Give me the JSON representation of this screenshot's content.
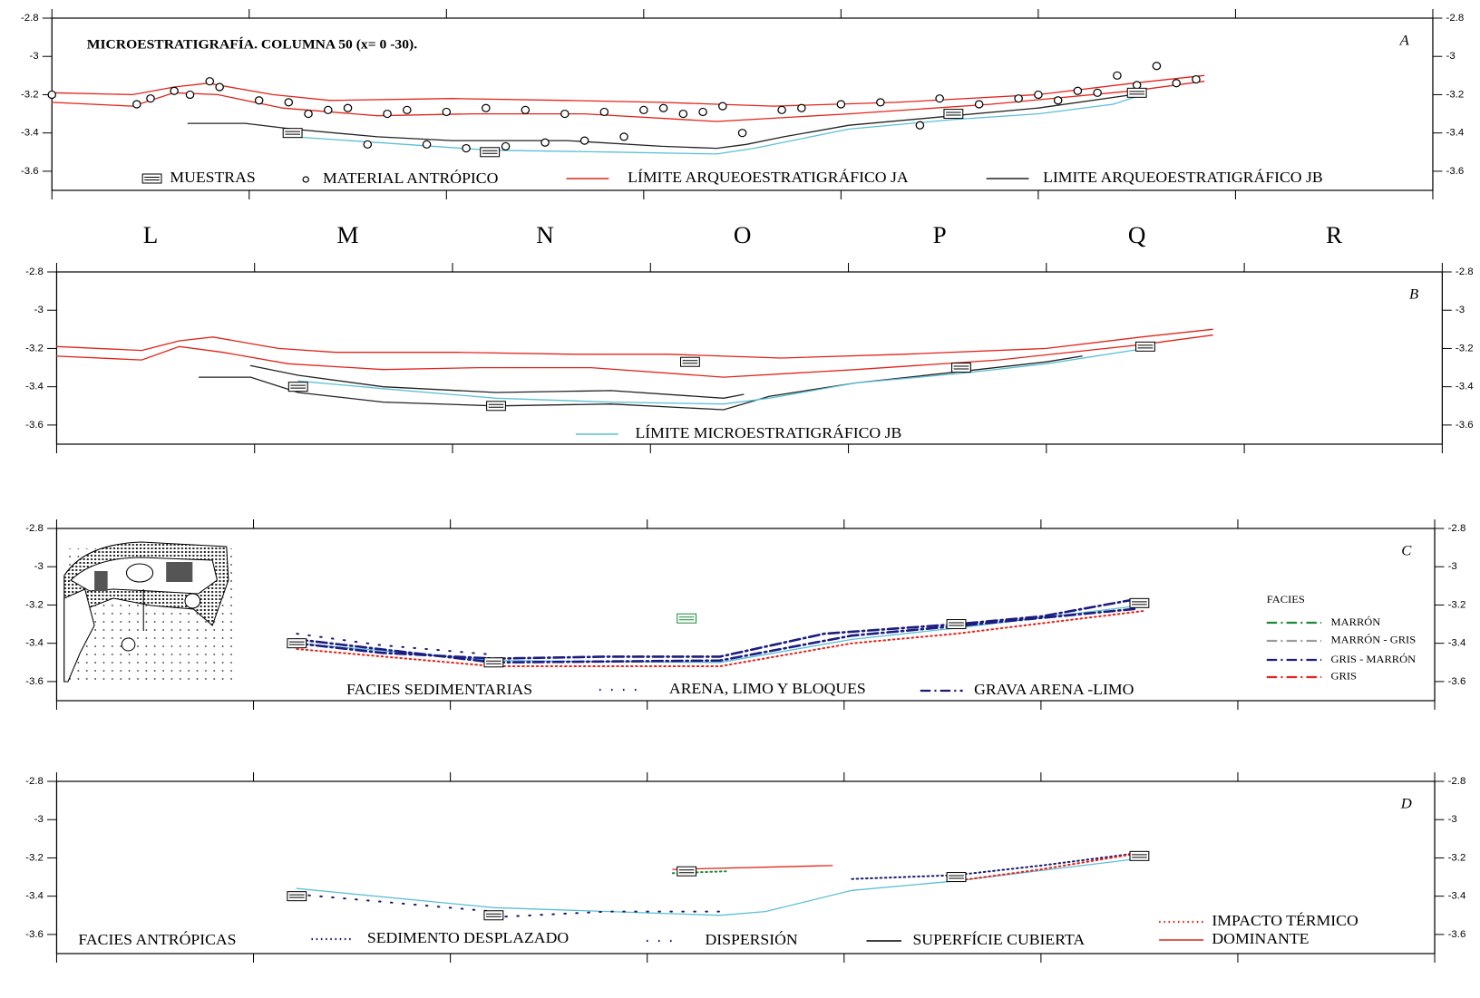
{
  "columns": [
    "L",
    "M",
    "N",
    "O",
    "P",
    "Q",
    "R"
  ],
  "chart_data": [
    {
      "type": "line",
      "title": "MICROESTRATIGRAFÍA.  COLUMNA 50 (x= 0 -30).",
      "panel_label": "A",
      "xlim": [
        0,
        7
      ],
      "xticks": [
        0,
        1,
        2,
        3,
        4,
        5,
        6,
        7
      ],
      "ylim": [
        -3.7,
        -2.8
      ],
      "yticks": [
        -2.8,
        -3,
        -3.2,
        -3.4,
        -3.6
      ],
      "series": [
        {
          "color": "#e2231a",
          "style": "solid",
          "x": [
            0,
            0.41,
            0.62,
            0.79,
            1.12,
            1.41,
            2.03,
            2.61,
            3.09,
            3.66,
            4.28,
            5.0,
            5.48,
            5.84
          ],
          "values": [
            -3.19,
            -3.2,
            -3.16,
            -3.14,
            -3.2,
            -3.23,
            -3.22,
            -3.23,
            -3.24,
            -3.26,
            -3.24,
            -3.2,
            -3.14,
            -3.1
          ]
        },
        {
          "color": "#e2231a",
          "style": "solid",
          "x": [
            0,
            0.41,
            0.62,
            0.84,
            1.17,
            1.65,
            2.13,
            2.7,
            3.37,
            4.04,
            4.76,
            5.48,
            5.84
          ],
          "values": [
            -3.24,
            -3.26,
            -3.19,
            -3.2,
            -3.27,
            -3.31,
            -3.3,
            -3.3,
            -3.34,
            -3.3,
            -3.25,
            -3.18,
            -3.13
          ]
        },
        {
          "color": "#222222",
          "style": "solid",
          "x": [
            0.69,
            0.98,
            1.22,
            1.65,
            2.03,
            2.61,
            3.09,
            3.37,
            3.52,
            3.71,
            4.04,
            4.57,
            5.0,
            5.48
          ],
          "values": [
            -3.35,
            -3.35,
            -3.38,
            -3.42,
            -3.44,
            -3.44,
            -3.47,
            -3.48,
            -3.46,
            -3.42,
            -3.36,
            -3.31,
            -3.27,
            -3.2
          ]
        },
        {
          "color": "#5bbfd6",
          "style": "solid",
          "x": [
            1.22,
            1.65,
            2.22,
            2.85,
            3.37,
            3.56,
            4.04,
            4.57,
            5.0,
            5.38,
            5.53
          ],
          "values": [
            -3.42,
            -3.45,
            -3.49,
            -3.5,
            -3.51,
            -3.48,
            -3.38,
            -3.33,
            -3.3,
            -3.25,
            -3.2
          ]
        },
        {
          "color": "#000000",
          "marker": "circle",
          "x": [
            0.0,
            0.43,
            0.5,
            0.62,
            0.7,
            0.8,
            0.85,
            1.05,
            1.2,
            1.3,
            1.4,
            1.5,
            1.6,
            1.7,
            1.8,
            1.9,
            2.0,
            2.1,
            2.2,
            2.3,
            2.4,
            2.5,
            2.6,
            2.7,
            2.8,
            2.9,
            3.0,
            3.1,
            3.2,
            3.3,
            3.4,
            3.5,
            3.7,
            3.8,
            4.0,
            4.2,
            4.4,
            4.5,
            4.7,
            4.9,
            5.0,
            5.1,
            5.2,
            5.3,
            5.4,
            5.5,
            5.6,
            5.7,
            5.8
          ],
          "values": [
            -3.2,
            -3.25,
            -3.22,
            -3.18,
            -3.2,
            -3.13,
            -3.16,
            -3.23,
            -3.24,
            -3.3,
            -3.28,
            -3.27,
            -3.46,
            -3.3,
            -3.28,
            -3.46,
            -3.29,
            -3.48,
            -3.27,
            -3.47,
            -3.28,
            -3.45,
            -3.3,
            -3.44,
            -3.29,
            -3.42,
            -3.28,
            -3.27,
            -3.3,
            -3.29,
            -3.26,
            -3.4,
            -3.28,
            -3.27,
            -3.25,
            -3.24,
            -3.36,
            -3.22,
            -3.25,
            -3.22,
            -3.2,
            -3.23,
            -3.18,
            -3.19,
            -3.1,
            -3.15,
            -3.05,
            -3.14,
            -3.12
          ]
        },
        {
          "color": "#000000",
          "marker": "sample",
          "x": [
            1.22,
            2.22,
            4.57,
            5.5
          ],
          "values": [
            -3.4,
            -3.5,
            -3.3,
            -3.19
          ]
        }
      ],
      "legend": [
        {
          "label": "MUESTRAS",
          "color": "#000000",
          "style": "sample"
        },
        {
          "label": "MATERIAL ANTRÓPICO",
          "color": "#000000",
          "style": "circle"
        },
        {
          "label": "LÍMITE ARQUEOESTRATIGRÁFICO JA",
          "color": "#e2231a",
          "style": "solid"
        },
        {
          "label": "LIMITE ARQUEOESTRATIGRÁFICO JB",
          "color": "#222222",
          "style": "solid"
        }
      ]
    },
    {
      "type": "line",
      "panel_label": "B",
      "xlim": [
        0,
        7
      ],
      "xticks": [
        0,
        1,
        2,
        3,
        4,
        5,
        6,
        7
      ],
      "ylim": [
        -3.7,
        -2.8
      ],
      "yticks": [
        -2.8,
        -3,
        -3.2,
        -3.4,
        -3.6
      ],
      "series": [
        {
          "color": "#e2231a",
          "style": "solid",
          "x": [
            0,
            0.43,
            0.62,
            0.79,
            1.12,
            1.41,
            2.03,
            2.61,
            3.09,
            3.66,
            4.28,
            5.0,
            5.48,
            5.84
          ],
          "values": [
            -3.19,
            -3.21,
            -3.16,
            -3.14,
            -3.2,
            -3.22,
            -3.22,
            -3.23,
            -3.23,
            -3.25,
            -3.23,
            -3.2,
            -3.14,
            -3.1
          ]
        },
        {
          "color": "#e2231a",
          "style": "solid",
          "x": [
            0,
            0.43,
            0.62,
            0.84,
            1.17,
            1.65,
            2.13,
            2.7,
            3.37,
            4.04,
            4.76,
            5.48,
            5.84
          ],
          "values": [
            -3.24,
            -3.26,
            -3.19,
            -3.22,
            -3.28,
            -3.31,
            -3.3,
            -3.3,
            -3.35,
            -3.31,
            -3.26,
            -3.18,
            -3.13
          ]
        },
        {
          "color": "#222222",
          "style": "solid",
          "x": [
            0.98,
            1.22,
            1.65,
            2.22,
            2.8,
            3.37,
            3.47
          ],
          "values": [
            -3.29,
            -3.34,
            -3.4,
            -3.43,
            -3.42,
            -3.46,
            -3.44
          ]
        },
        {
          "color": "#222222",
          "style": "solid",
          "x": [
            0.72,
            0.98,
            1.22,
            1.65,
            2.22,
            2.8,
            3.37,
            3.6,
            4.04,
            4.57,
            5.0,
            5.18
          ],
          "values": [
            -3.35,
            -3.35,
            -3.43,
            -3.48,
            -3.5,
            -3.49,
            -3.52,
            -3.45,
            -3.38,
            -3.32,
            -3.27,
            -3.24
          ]
        },
        {
          "color": "#5bbfd6",
          "style": "solid",
          "x": [
            1.22,
            1.65,
            2.22,
            2.8,
            3.37,
            3.6,
            4.04,
            4.57,
            5.0,
            5.5
          ],
          "values": [
            -3.37,
            -3.41,
            -3.46,
            -3.48,
            -3.49,
            -3.46,
            -3.38,
            -3.33,
            -3.28,
            -3.2
          ]
        },
        {
          "color": "#000000",
          "marker": "sample",
          "x": [
            1.22,
            2.22,
            3.2,
            4.57,
            5.5
          ],
          "values": [
            -3.4,
            -3.5,
            -3.27,
            -3.3,
            -3.19
          ]
        }
      ],
      "legend": [
        {
          "label": "LÍMITE MICROESTRATIGRÁFICO JB",
          "color": "#5bbfd6",
          "style": "solid"
        }
      ]
    },
    {
      "type": "line",
      "panel_label": "C",
      "xlim": [
        0,
        7
      ],
      "xticks": [
        0,
        1,
        2,
        3,
        4,
        5,
        6,
        7
      ],
      "ylim": [
        -3.7,
        -2.8
      ],
      "yticks": [
        -2.8,
        -3,
        -3.2,
        -3.4,
        -3.6
      ],
      "series": [
        {
          "color": "#5bbfd6",
          "style": "solid",
          "x": [
            1.22,
            2.22,
            3.37,
            4.04,
            4.57,
            5.53
          ],
          "values": [
            -3.4,
            -3.49,
            -3.5,
            -3.38,
            -3.32,
            -3.2
          ]
        },
        {
          "color": "#1a1a6e",
          "style": "sparse",
          "x": [
            1.22,
            1.65,
            2.22
          ],
          "values": [
            -3.35,
            -3.41,
            -3.46
          ]
        },
        {
          "color": "#1c1c80",
          "style": "dashdot",
          "x": [
            1.22,
            1.65,
            2.22,
            2.8,
            3.37,
            3.9,
            4.57,
            5.0,
            5.48
          ],
          "values": [
            -3.4,
            -3.45,
            -3.48,
            -3.47,
            -3.47,
            -3.35,
            -3.3,
            -3.26,
            -3.17
          ]
        },
        {
          "color": "#1c1c80",
          "style": "dashdot",
          "x": [
            1.22,
            2.22,
            3.37,
            4.04,
            4.57,
            5.48
          ],
          "values": [
            -3.38,
            -3.5,
            -3.49,
            -3.36,
            -3.31,
            -3.22
          ]
        },
        {
          "color": "#e2231a",
          "style": "dotted",
          "x": [
            1.22,
            2.22,
            3.37,
            4.04,
            4.57,
            5.53
          ],
          "values": [
            -3.43,
            -3.52,
            -3.52,
            -3.4,
            -3.35,
            -3.23
          ]
        },
        {
          "color": "#000000",
          "marker": "sample",
          "x": [
            1.22,
            2.22,
            4.57,
            5.5
          ],
          "values": [
            -3.4,
            -3.5,
            -3.3,
            -3.19
          ]
        },
        {
          "color": "#1a8a3a",
          "marker": "sample",
          "x": [
            3.2
          ],
          "values": [
            -3.27
          ]
        }
      ],
      "legend": [
        {
          "label": "FACIES SEDIMENTARIAS",
          "style": "none"
        },
        {
          "label": "ARENA, LIMO Y BLOQUES",
          "color": "#1a1a6e",
          "style": "sparse"
        },
        {
          "label": "GRAVA ARENA -LIMO",
          "color": "#1a1a6e",
          "style": "dashdot"
        },
        {
          "label": "FACIES",
          "style": "none"
        },
        {
          "label": "MARRÓN",
          "color": "#1a8a3a",
          "style": "dashdot"
        },
        {
          "label": "MARRÓN - GRIS",
          "color": "#9a9a9a",
          "style": "dashdot"
        },
        {
          "label": "GRIS - MARRÓN",
          "color": "#1c1c80",
          "style": "dashdot"
        },
        {
          "label": "GRIS",
          "color": "#e2231a",
          "style": "dashdot"
        }
      ]
    },
    {
      "type": "line",
      "panel_label": "D",
      "xlim": [
        0,
        7
      ],
      "xticks": [
        0,
        1,
        2,
        3,
        4,
        5,
        6,
        7
      ],
      "ylim": [
        -3.7,
        -2.8
      ],
      "yticks": [
        -2.8,
        -3,
        -3.2,
        -3.4,
        -3.6
      ],
      "series": [
        {
          "color": "#5bbfd6",
          "style": "solid",
          "x": [
            1.22,
            2.22,
            3.37,
            3.6,
            4.04,
            4.57,
            5.53
          ],
          "values": [
            -3.36,
            -3.46,
            -3.5,
            -3.48,
            -3.37,
            -3.32,
            -3.2
          ]
        },
        {
          "color": "#1a1a6e",
          "style": "sparse",
          "x": [
            1.22,
            2.22
          ],
          "values": [
            -3.39,
            -3.48
          ]
        },
        {
          "color": "#1a1a6e",
          "style": "sparse",
          "x": [
            2.22,
            2.8,
            3.37
          ],
          "values": [
            -3.51,
            -3.48,
            -3.48
          ]
        },
        {
          "color": "#1a1a6e",
          "style": "dotted",
          "x": [
            4.04,
            4.57,
            5.0,
            5.53
          ],
          "values": [
            -3.31,
            -3.29,
            -3.24,
            -3.17
          ]
        },
        {
          "color": "#e2231a",
          "style": "dotted",
          "x": [
            4.57,
            5.0,
            5.53
          ],
          "values": [
            -3.32,
            -3.26,
            -3.17
          ]
        },
        {
          "color": "#e2231a",
          "style": "solid",
          "x": [
            3.13,
            3.94
          ],
          "values": [
            -3.26,
            -3.24
          ]
        },
        {
          "color": "#1a8a3a",
          "style": "dotted",
          "x": [
            3.13,
            3.4
          ],
          "values": [
            -3.28,
            -3.27
          ]
        },
        {
          "color": "#000000",
          "marker": "sample",
          "x": [
            1.22,
            2.22,
            3.2,
            4.57,
            5.5
          ],
          "values": [
            -3.4,
            -3.5,
            -3.27,
            -3.3,
            -3.19
          ]
        }
      ],
      "legend": [
        {
          "label": "FACIES ANTRÓPICAS",
          "style": "none"
        },
        {
          "label": "SEDIMENTO DESPLAZADO",
          "color": "#1a1a6e",
          "style": "dotted"
        },
        {
          "label": "DISPERSIÓN",
          "color": "#1a1a6e",
          "style": "sparse"
        },
        {
          "label": "SUPERFÍCIE CUBIERTA",
          "color": "#000000",
          "style": "solid"
        },
        {
          "label": "IMPACTO TÉRMICO",
          "color": "#e2231a",
          "style": "dotted"
        },
        {
          "label": "DOMINANTE",
          "color": "#e2231a",
          "style": "solid"
        }
      ]
    }
  ]
}
